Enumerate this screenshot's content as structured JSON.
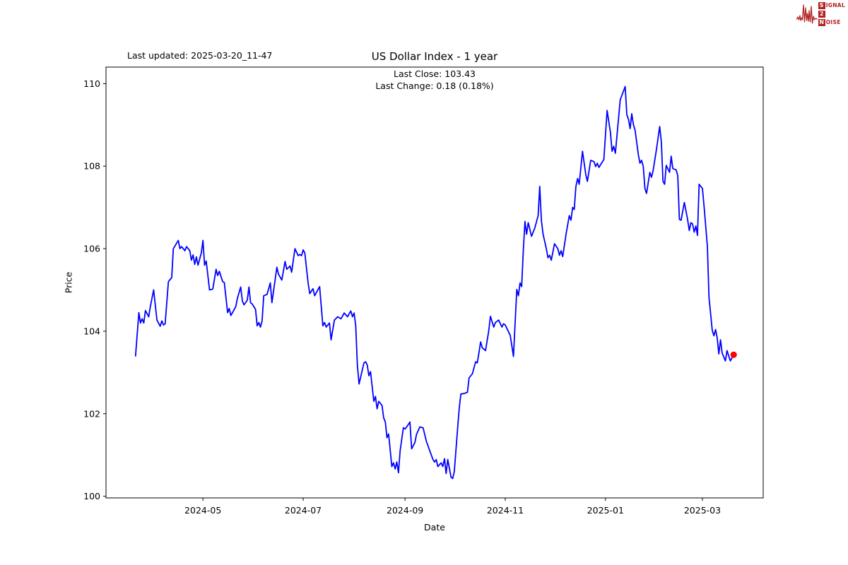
{
  "header": {
    "last_updated": "Last updated: 2025-03-20_11-47",
    "logo": {
      "color": "#b22222",
      "row1_box": "S",
      "row1_rest": "IGNAL",
      "row2_box": "2",
      "row3_box": "N",
      "row3_rest": "OISE"
    }
  },
  "chart_data": {
    "type": "line",
    "title": "US Dollar Index - 1 year",
    "subtitle_line1": "Last Close: 103.43",
    "subtitle_line2": "Last Change: 0.18 (0.18%)",
    "xlabel": "Date",
    "ylabel": "Price",
    "last_close": 103.43,
    "last_change": "0.18 (0.18%)",
    "line_color": "#0000ff",
    "last_point_color": "#ff0000",
    "grid": false,
    "legend": "none",
    "ylim": [
      99.96,
      110.4
    ],
    "xlim": [
      "2024-03-03",
      "2025-04-07"
    ],
    "y_ticks": [
      {
        "value": 100,
        "label": "100"
      },
      {
        "value": 102,
        "label": "102"
      },
      {
        "value": 104,
        "label": "104"
      },
      {
        "value": 106,
        "label": "106"
      },
      {
        "value": 108,
        "label": "108"
      },
      {
        "value": 110,
        "label": "110"
      }
    ],
    "x_ticks": [
      {
        "date": "2024-05-01",
        "label": "2024-05"
      },
      {
        "date": "2024-07-01",
        "label": "2024-07"
      },
      {
        "date": "2024-09-01",
        "label": "2024-09"
      },
      {
        "date": "2024-11-01",
        "label": "2024-11"
      },
      {
        "date": "2025-01-01",
        "label": "2025-01"
      },
      {
        "date": "2025-03-01",
        "label": "2025-03"
      }
    ],
    "series": [
      {
        "name": "US Dollar Index",
        "points": [
          [
            "2024-03-21",
            103.4
          ],
          [
            "2024-03-23",
            104.45
          ],
          [
            "2024-03-24",
            104.2
          ],
          [
            "2024-03-25",
            104.3
          ],
          [
            "2024-03-26",
            104.2
          ],
          [
            "2024-03-27",
            104.5
          ],
          [
            "2024-03-29",
            104.35
          ],
          [
            "2024-03-30",
            104.6
          ],
          [
            "2024-04-01",
            105.0
          ],
          [
            "2024-04-03",
            104.27
          ],
          [
            "2024-04-05",
            104.12
          ],
          [
            "2024-04-06",
            104.25
          ],
          [
            "2024-04-07",
            104.15
          ],
          [
            "2024-04-08",
            104.18
          ],
          [
            "2024-04-10",
            105.2
          ],
          [
            "2024-04-12",
            105.3
          ],
          [
            "2024-04-13",
            106.0
          ],
          [
            "2024-04-16",
            106.2
          ],
          [
            "2024-04-17",
            106.0
          ],
          [
            "2024-04-18",
            106.05
          ],
          [
            "2024-04-20",
            105.95
          ],
          [
            "2024-04-21",
            106.05
          ],
          [
            "2024-04-23",
            105.95
          ],
          [
            "2024-04-24",
            105.72
          ],
          [
            "2024-04-25",
            105.85
          ],
          [
            "2024-04-26",
            105.62
          ],
          [
            "2024-04-27",
            105.8
          ],
          [
            "2024-04-28",
            105.6
          ],
          [
            "2024-04-30",
            105.9
          ],
          [
            "2024-05-01",
            106.2
          ],
          [
            "2024-05-02",
            105.6
          ],
          [
            "2024-05-03",
            105.7
          ],
          [
            "2024-05-05",
            105.0
          ],
          [
            "2024-05-07",
            105.02
          ],
          [
            "2024-05-09",
            105.5
          ],
          [
            "2024-05-10",
            105.35
          ],
          [
            "2024-05-11",
            105.45
          ],
          [
            "2024-05-13",
            105.2
          ],
          [
            "2024-05-14",
            105.18
          ],
          [
            "2024-05-16",
            104.45
          ],
          [
            "2024-05-17",
            104.55
          ],
          [
            "2024-05-18",
            104.38
          ],
          [
            "2024-05-19",
            104.45
          ],
          [
            "2024-05-21",
            104.6
          ],
          [
            "2024-05-22",
            104.8
          ],
          [
            "2024-05-24",
            105.07
          ],
          [
            "2024-05-25",
            104.73
          ],
          [
            "2024-05-26",
            104.64
          ],
          [
            "2024-05-28",
            104.75
          ],
          [
            "2024-05-29",
            105.07
          ],
          [
            "2024-05-30",
            104.69
          ],
          [
            "2024-05-31",
            104.66
          ],
          [
            "2024-06-02",
            104.53
          ],
          [
            "2024-06-03",
            104.13
          ],
          [
            "2024-06-04",
            104.21
          ],
          [
            "2024-06-05",
            104.1
          ],
          [
            "2024-06-06",
            104.25
          ],
          [
            "2024-06-07",
            104.86
          ],
          [
            "2024-06-09",
            104.89
          ],
          [
            "2024-06-11",
            105.17
          ],
          [
            "2024-06-12",
            104.69
          ],
          [
            "2024-06-15",
            105.55
          ],
          [
            "2024-06-16",
            105.38
          ],
          [
            "2024-06-18",
            105.24
          ],
          [
            "2024-06-20",
            105.69
          ],
          [
            "2024-06-21",
            105.5
          ],
          [
            "2024-06-23",
            105.58
          ],
          [
            "2024-06-24",
            105.43
          ],
          [
            "2024-06-26",
            106.0
          ],
          [
            "2024-06-28",
            105.83
          ],
          [
            "2024-06-29",
            105.86
          ],
          [
            "2024-06-30",
            105.83
          ],
          [
            "2024-07-01",
            105.97
          ],
          [
            "2024-07-02",
            105.9
          ],
          [
            "2024-07-04",
            105.17
          ],
          [
            "2024-07-05",
            104.91
          ],
          [
            "2024-07-07",
            105.03
          ],
          [
            "2024-07-08",
            104.86
          ],
          [
            "2024-07-11",
            105.08
          ],
          [
            "2024-07-13",
            104.13
          ],
          [
            "2024-07-14",
            104.21
          ],
          [
            "2024-07-15",
            104.1
          ],
          [
            "2024-07-17",
            104.2
          ],
          [
            "2024-07-18",
            103.79
          ],
          [
            "2024-07-20",
            104.27
          ],
          [
            "2024-07-22",
            104.35
          ],
          [
            "2024-07-24",
            104.3
          ],
          [
            "2024-07-26",
            104.44
          ],
          [
            "2024-07-28",
            104.35
          ],
          [
            "2024-07-30",
            104.49
          ],
          [
            "2024-07-31",
            104.35
          ],
          [
            "2024-08-01",
            104.44
          ],
          [
            "2024-08-02",
            104.13
          ],
          [
            "2024-08-03",
            103.18
          ],
          [
            "2024-08-04",
            102.72
          ],
          [
            "2024-08-07",
            103.23
          ],
          [
            "2024-08-08",
            103.26
          ],
          [
            "2024-08-09",
            103.18
          ],
          [
            "2024-08-10",
            102.92
          ],
          [
            "2024-08-11",
            103.02
          ],
          [
            "2024-08-13",
            102.3
          ],
          [
            "2024-08-14",
            102.42
          ],
          [
            "2024-08-15",
            102.12
          ],
          [
            "2024-08-16",
            102.3
          ],
          [
            "2024-08-18",
            102.2
          ],
          [
            "2024-08-19",
            101.9
          ],
          [
            "2024-08-20",
            101.8
          ],
          [
            "2024-08-21",
            101.42
          ],
          [
            "2024-08-22",
            101.51
          ],
          [
            "2024-08-24",
            100.72
          ],
          [
            "2024-08-25",
            100.81
          ],
          [
            "2024-08-26",
            100.66
          ],
          [
            "2024-08-27",
            100.83
          ],
          [
            "2024-08-28",
            100.57
          ],
          [
            "2024-08-29",
            101.1
          ],
          [
            "2024-08-31",
            101.66
          ],
          [
            "2024-09-01",
            101.63
          ],
          [
            "2024-09-02",
            101.68
          ],
          [
            "2024-09-04",
            101.8
          ],
          [
            "2024-09-05",
            101.15
          ],
          [
            "2024-09-07",
            101.3
          ],
          [
            "2024-09-08",
            101.5
          ],
          [
            "2024-09-10",
            101.68
          ],
          [
            "2024-09-12",
            101.66
          ],
          [
            "2024-09-14",
            101.33
          ],
          [
            "2024-09-16",
            101.11
          ],
          [
            "2024-09-18",
            100.89
          ],
          [
            "2024-09-19",
            100.83
          ],
          [
            "2024-09-20",
            100.89
          ],
          [
            "2024-09-21",
            100.72
          ],
          [
            "2024-09-23",
            100.81
          ],
          [
            "2024-09-24",
            100.72
          ],
          [
            "2024-09-25",
            100.91
          ],
          [
            "2024-09-26",
            100.55
          ],
          [
            "2024-09-27",
            100.89
          ],
          [
            "2024-09-29",
            100.46
          ],
          [
            "2024-09-30",
            100.43
          ],
          [
            "2024-10-01",
            100.6
          ],
          [
            "2024-10-03",
            101.63
          ],
          [
            "2024-10-04",
            102.14
          ],
          [
            "2024-10-05",
            102.48
          ],
          [
            "2024-10-07",
            102.49
          ],
          [
            "2024-10-09",
            102.52
          ],
          [
            "2024-10-10",
            102.87
          ],
          [
            "2024-10-11",
            102.92
          ],
          [
            "2024-10-12",
            102.97
          ],
          [
            "2024-10-14",
            103.26
          ],
          [
            "2024-10-15",
            103.23
          ],
          [
            "2024-10-16",
            103.48
          ],
          [
            "2024-10-17",
            103.74
          ],
          [
            "2024-10-18",
            103.6
          ],
          [
            "2024-10-20",
            103.53
          ],
          [
            "2024-10-22",
            104.02
          ],
          [
            "2024-10-23",
            104.36
          ],
          [
            "2024-10-25",
            104.1
          ],
          [
            "2024-10-26",
            104.21
          ],
          [
            "2024-10-28",
            104.27
          ],
          [
            "2024-10-30",
            104.1
          ],
          [
            "2024-10-31",
            104.18
          ],
          [
            "2024-11-01",
            104.15
          ],
          [
            "2024-11-04",
            103.9
          ],
          [
            "2024-11-06",
            103.39
          ],
          [
            "2024-11-08",
            105.01
          ],
          [
            "2024-11-09",
            104.86
          ],
          [
            "2024-11-10",
            105.17
          ],
          [
            "2024-11-11",
            105.08
          ],
          [
            "2024-11-12",
            105.95
          ],
          [
            "2024-11-13",
            106.66
          ],
          [
            "2024-11-14",
            106.35
          ],
          [
            "2024-11-15",
            106.63
          ],
          [
            "2024-11-17",
            106.3
          ],
          [
            "2024-11-19",
            106.5
          ],
          [
            "2024-11-21",
            106.8
          ],
          [
            "2024-11-22",
            107.51
          ],
          [
            "2024-11-23",
            106.69
          ],
          [
            "2024-11-24",
            106.35
          ],
          [
            "2024-11-26",
            106.0
          ],
          [
            "2024-11-27",
            105.78
          ],
          [
            "2024-11-28",
            105.84
          ],
          [
            "2024-11-29",
            105.72
          ],
          [
            "2024-12-01",
            106.12
          ],
          [
            "2024-12-03",
            106.0
          ],
          [
            "2024-12-04",
            105.84
          ],
          [
            "2024-12-05",
            105.95
          ],
          [
            "2024-12-06",
            105.81
          ],
          [
            "2024-12-08",
            106.35
          ],
          [
            "2024-12-10",
            106.8
          ],
          [
            "2024-12-11",
            106.69
          ],
          [
            "2024-12-12",
            107.0
          ],
          [
            "2024-12-13",
            106.95
          ],
          [
            "2024-12-14",
            107.5
          ],
          [
            "2024-12-15",
            107.7
          ],
          [
            "2024-12-16",
            107.56
          ],
          [
            "2024-12-18",
            108.36
          ],
          [
            "2024-12-20",
            107.8
          ],
          [
            "2024-12-21",
            107.63
          ],
          [
            "2024-12-23",
            108.14
          ],
          [
            "2024-12-25",
            108.11
          ],
          [
            "2024-12-26",
            107.99
          ],
          [
            "2024-12-27",
            108.07
          ],
          [
            "2024-12-28",
            107.97
          ],
          [
            "2024-12-31",
            108.16
          ],
          [
            "2025-01-02",
            109.35
          ],
          [
            "2025-01-04",
            108.82
          ],
          [
            "2025-01-05",
            108.36
          ],
          [
            "2025-01-06",
            108.48
          ],
          [
            "2025-01-07",
            108.31
          ],
          [
            "2025-01-09",
            109.18
          ],
          [
            "2025-01-10",
            109.61
          ],
          [
            "2025-01-13",
            109.93
          ],
          [
            "2025-01-14",
            109.25
          ],
          [
            "2025-01-15",
            109.13
          ],
          [
            "2025-01-16",
            108.91
          ],
          [
            "2025-01-17",
            109.27
          ],
          [
            "2025-01-18",
            109.01
          ],
          [
            "2025-01-19",
            108.87
          ],
          [
            "2025-01-21",
            108.28
          ],
          [
            "2025-01-22",
            108.07
          ],
          [
            "2025-01-23",
            108.14
          ],
          [
            "2025-01-24",
            107.99
          ],
          [
            "2025-01-25",
            107.46
          ],
          [
            "2025-01-26",
            107.34
          ],
          [
            "2025-01-28",
            107.85
          ],
          [
            "2025-01-29",
            107.73
          ],
          [
            "2025-01-30",
            107.89
          ],
          [
            "2025-02-01",
            108.4
          ],
          [
            "2025-02-03",
            108.96
          ],
          [
            "2025-02-04",
            108.58
          ],
          [
            "2025-02-05",
            107.63
          ],
          [
            "2025-02-06",
            107.56
          ],
          [
            "2025-02-07",
            108.02
          ],
          [
            "2025-02-09",
            107.85
          ],
          [
            "2025-02-10",
            108.24
          ],
          [
            "2025-02-11",
            107.94
          ],
          [
            "2025-02-13",
            107.91
          ],
          [
            "2025-02-14",
            107.77
          ],
          [
            "2025-02-15",
            106.71
          ],
          [
            "2025-02-16",
            106.69
          ],
          [
            "2025-02-18",
            107.12
          ],
          [
            "2025-02-20",
            106.71
          ],
          [
            "2025-02-21",
            106.44
          ],
          [
            "2025-02-22",
            106.63
          ],
          [
            "2025-02-23",
            106.6
          ],
          [
            "2025-02-24",
            106.4
          ],
          [
            "2025-02-25",
            106.55
          ],
          [
            "2025-02-26",
            106.32
          ],
          [
            "2025-02-27",
            107.56
          ],
          [
            "2025-03-01",
            107.46
          ],
          [
            "2025-03-02",
            107.03
          ],
          [
            "2025-03-04",
            106.06
          ],
          [
            "2025-03-05",
            104.82
          ],
          [
            "2025-03-07",
            104.02
          ],
          [
            "2025-03-08",
            103.89
          ],
          [
            "2025-03-09",
            104.04
          ],
          [
            "2025-03-10",
            103.84
          ],
          [
            "2025-03-11",
            103.45
          ],
          [
            "2025-03-12",
            103.79
          ],
          [
            "2025-03-13",
            103.47
          ],
          [
            "2025-03-15",
            103.28
          ],
          [
            "2025-03-16",
            103.53
          ],
          [
            "2025-03-18",
            103.28
          ],
          [
            "2025-03-20",
            103.43
          ]
        ]
      }
    ]
  }
}
